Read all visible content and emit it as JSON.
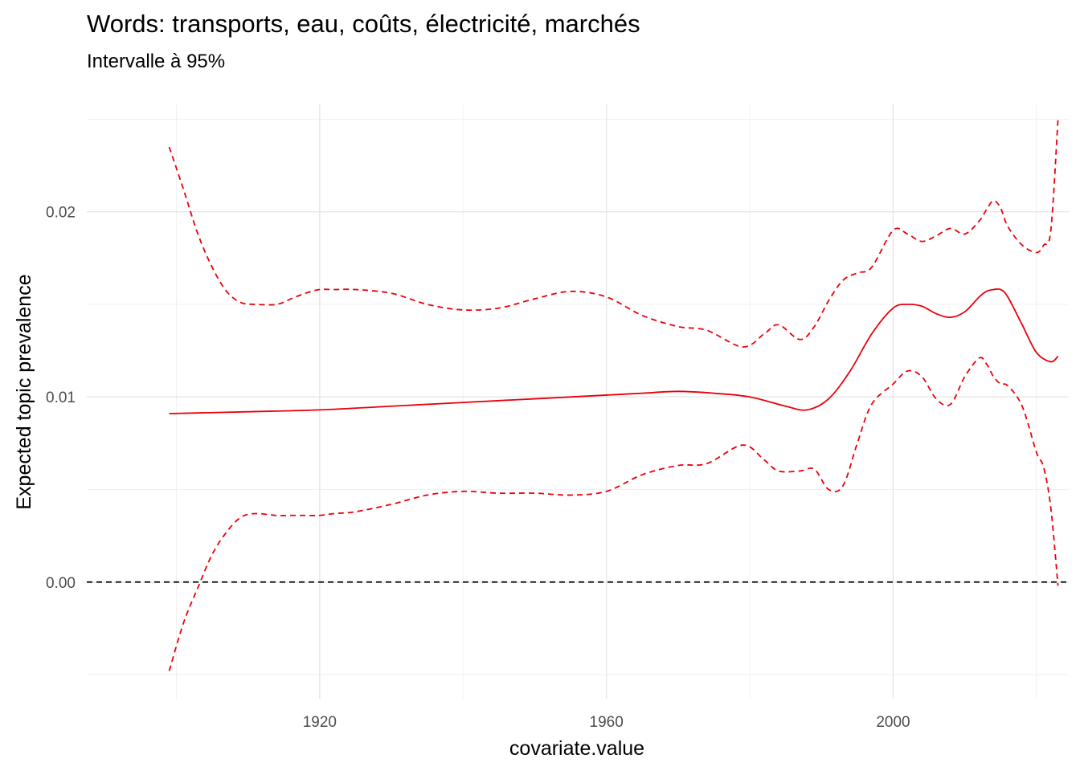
{
  "chart_data": {
    "type": "line",
    "title": "Words: transports, eau, coûts, électricité, marchés",
    "subtitle": "Intervalle à 95%",
    "xlabel": "covariate.value",
    "ylabel": "Expected topic prevalence",
    "xlim": [
      1887.5,
      2024.5
    ],
    "ylim": [
      -0.0063,
      0.0258
    ],
    "x_ticks": [
      1920,
      1960,
      2000
    ],
    "x_tick_labels": [
      "1920",
      "1960",
      "2000"
    ],
    "y_ticks": [
      0.0,
      0.01,
      0.02
    ],
    "y_tick_labels": [
      "0.00",
      "0.01",
      "0.02"
    ],
    "x_minor_ticks": [
      1900,
      1940,
      1980,
      2020
    ],
    "y_minor_ticks": [
      -0.005,
      0.005,
      0.015,
      0.025
    ],
    "grid": true,
    "legend": "none",
    "reference_line": {
      "y": 0,
      "style": "dashed",
      "color": "#000000"
    },
    "series": [
      {
        "role": "estimate",
        "style": "solid",
        "color": "#e8000b",
        "x": [
          1899,
          1910,
          1920,
          1930,
          1940,
          1950,
          1960,
          1965,
          1970,
          1975,
          1980,
          1985,
          1988,
          1991,
          1994,
          1997,
          2000,
          2002,
          2004,
          2006,
          2008,
          2010,
          2012,
          2013,
          2014,
          2015,
          2016,
          2018,
          2020,
          2022,
          2023
        ],
        "y": [
          0.0091,
          0.0092,
          0.0093,
          0.0095,
          0.0097,
          0.0099,
          0.0101,
          0.0102,
          0.0103,
          0.0102,
          0.01,
          0.0095,
          0.0093,
          0.0099,
          0.0114,
          0.0134,
          0.0148,
          0.015,
          0.0149,
          0.0145,
          0.0143,
          0.0146,
          0.0154,
          0.0157,
          0.0158,
          0.0158,
          0.0154,
          0.0139,
          0.0124,
          0.0119,
          0.0122
        ]
      },
      {
        "role": "upper-95",
        "style": "dashed",
        "color": "#e8000b",
        "x": [
          1899,
          1901,
          1903,
          1905,
          1907,
          1909,
          1911,
          1914,
          1916,
          1918,
          1920,
          1922,
          1925,
          1930,
          1935,
          1940,
          1945,
          1950,
          1955,
          1960,
          1965,
          1970,
          1974,
          1979,
          1982,
          1984,
          1987,
          1989,
          1991,
          1993,
          1995,
          1997,
          2000,
          2002,
          2004,
          2006,
          2008,
          2010,
          2012,
          2013,
          2014,
          2015,
          2016,
          2018,
          2020,
          2021,
          2022,
          2023
        ],
        "y": [
          0.0235,
          0.0212,
          0.0188,
          0.017,
          0.0157,
          0.0151,
          0.015,
          0.015,
          0.0153,
          0.0156,
          0.0158,
          0.0158,
          0.0158,
          0.0156,
          0.015,
          0.0147,
          0.0148,
          0.0153,
          0.0157,
          0.0154,
          0.0144,
          0.0138,
          0.0136,
          0.0127,
          0.0134,
          0.0139,
          0.0131,
          0.0138,
          0.0152,
          0.0163,
          0.0167,
          0.017,
          0.019,
          0.0188,
          0.0184,
          0.0187,
          0.0191,
          0.0188,
          0.0195,
          0.0201,
          0.0206,
          0.0202,
          0.0192,
          0.0182,
          0.0178,
          0.0182,
          0.019,
          0.025
        ]
      },
      {
        "role": "lower-95",
        "style": "dashed",
        "color": "#e8000b",
        "x": [
          1899,
          1901,
          1903,
          1905,
          1907,
          1909,
          1911,
          1914,
          1916,
          1918,
          1920,
          1922,
          1925,
          1930,
          1935,
          1940,
          1945,
          1950,
          1955,
          1960,
          1965,
          1970,
          1974,
          1979,
          1982,
          1984,
          1987,
          1989,
          1991,
          1993,
          1995,
          1997,
          2000,
          2002,
          2004,
          2006,
          2008,
          2010,
          2012,
          2013,
          2014,
          2015,
          2016,
          2018,
          2020,
          2021,
          2022,
          2023
        ],
        "y": [
          -0.0048,
          -0.0022,
          -0.0003,
          0.0015,
          0.0027,
          0.0035,
          0.0037,
          0.0036,
          0.0036,
          0.0036,
          0.0036,
          0.0037,
          0.0038,
          0.0042,
          0.0047,
          0.0049,
          0.0048,
          0.0048,
          0.0047,
          0.0049,
          0.0058,
          0.0063,
          0.0064,
          0.0074,
          0.0066,
          0.006,
          0.006,
          0.0061,
          0.005,
          0.0052,
          0.0075,
          0.0096,
          0.0107,
          0.0114,
          0.0111,
          0.0099,
          0.0096,
          0.0111,
          0.0121,
          0.0118,
          0.0111,
          0.0107,
          0.0106,
          0.0095,
          0.007,
          0.0062,
          0.004,
          -0.0002
        ]
      }
    ]
  }
}
